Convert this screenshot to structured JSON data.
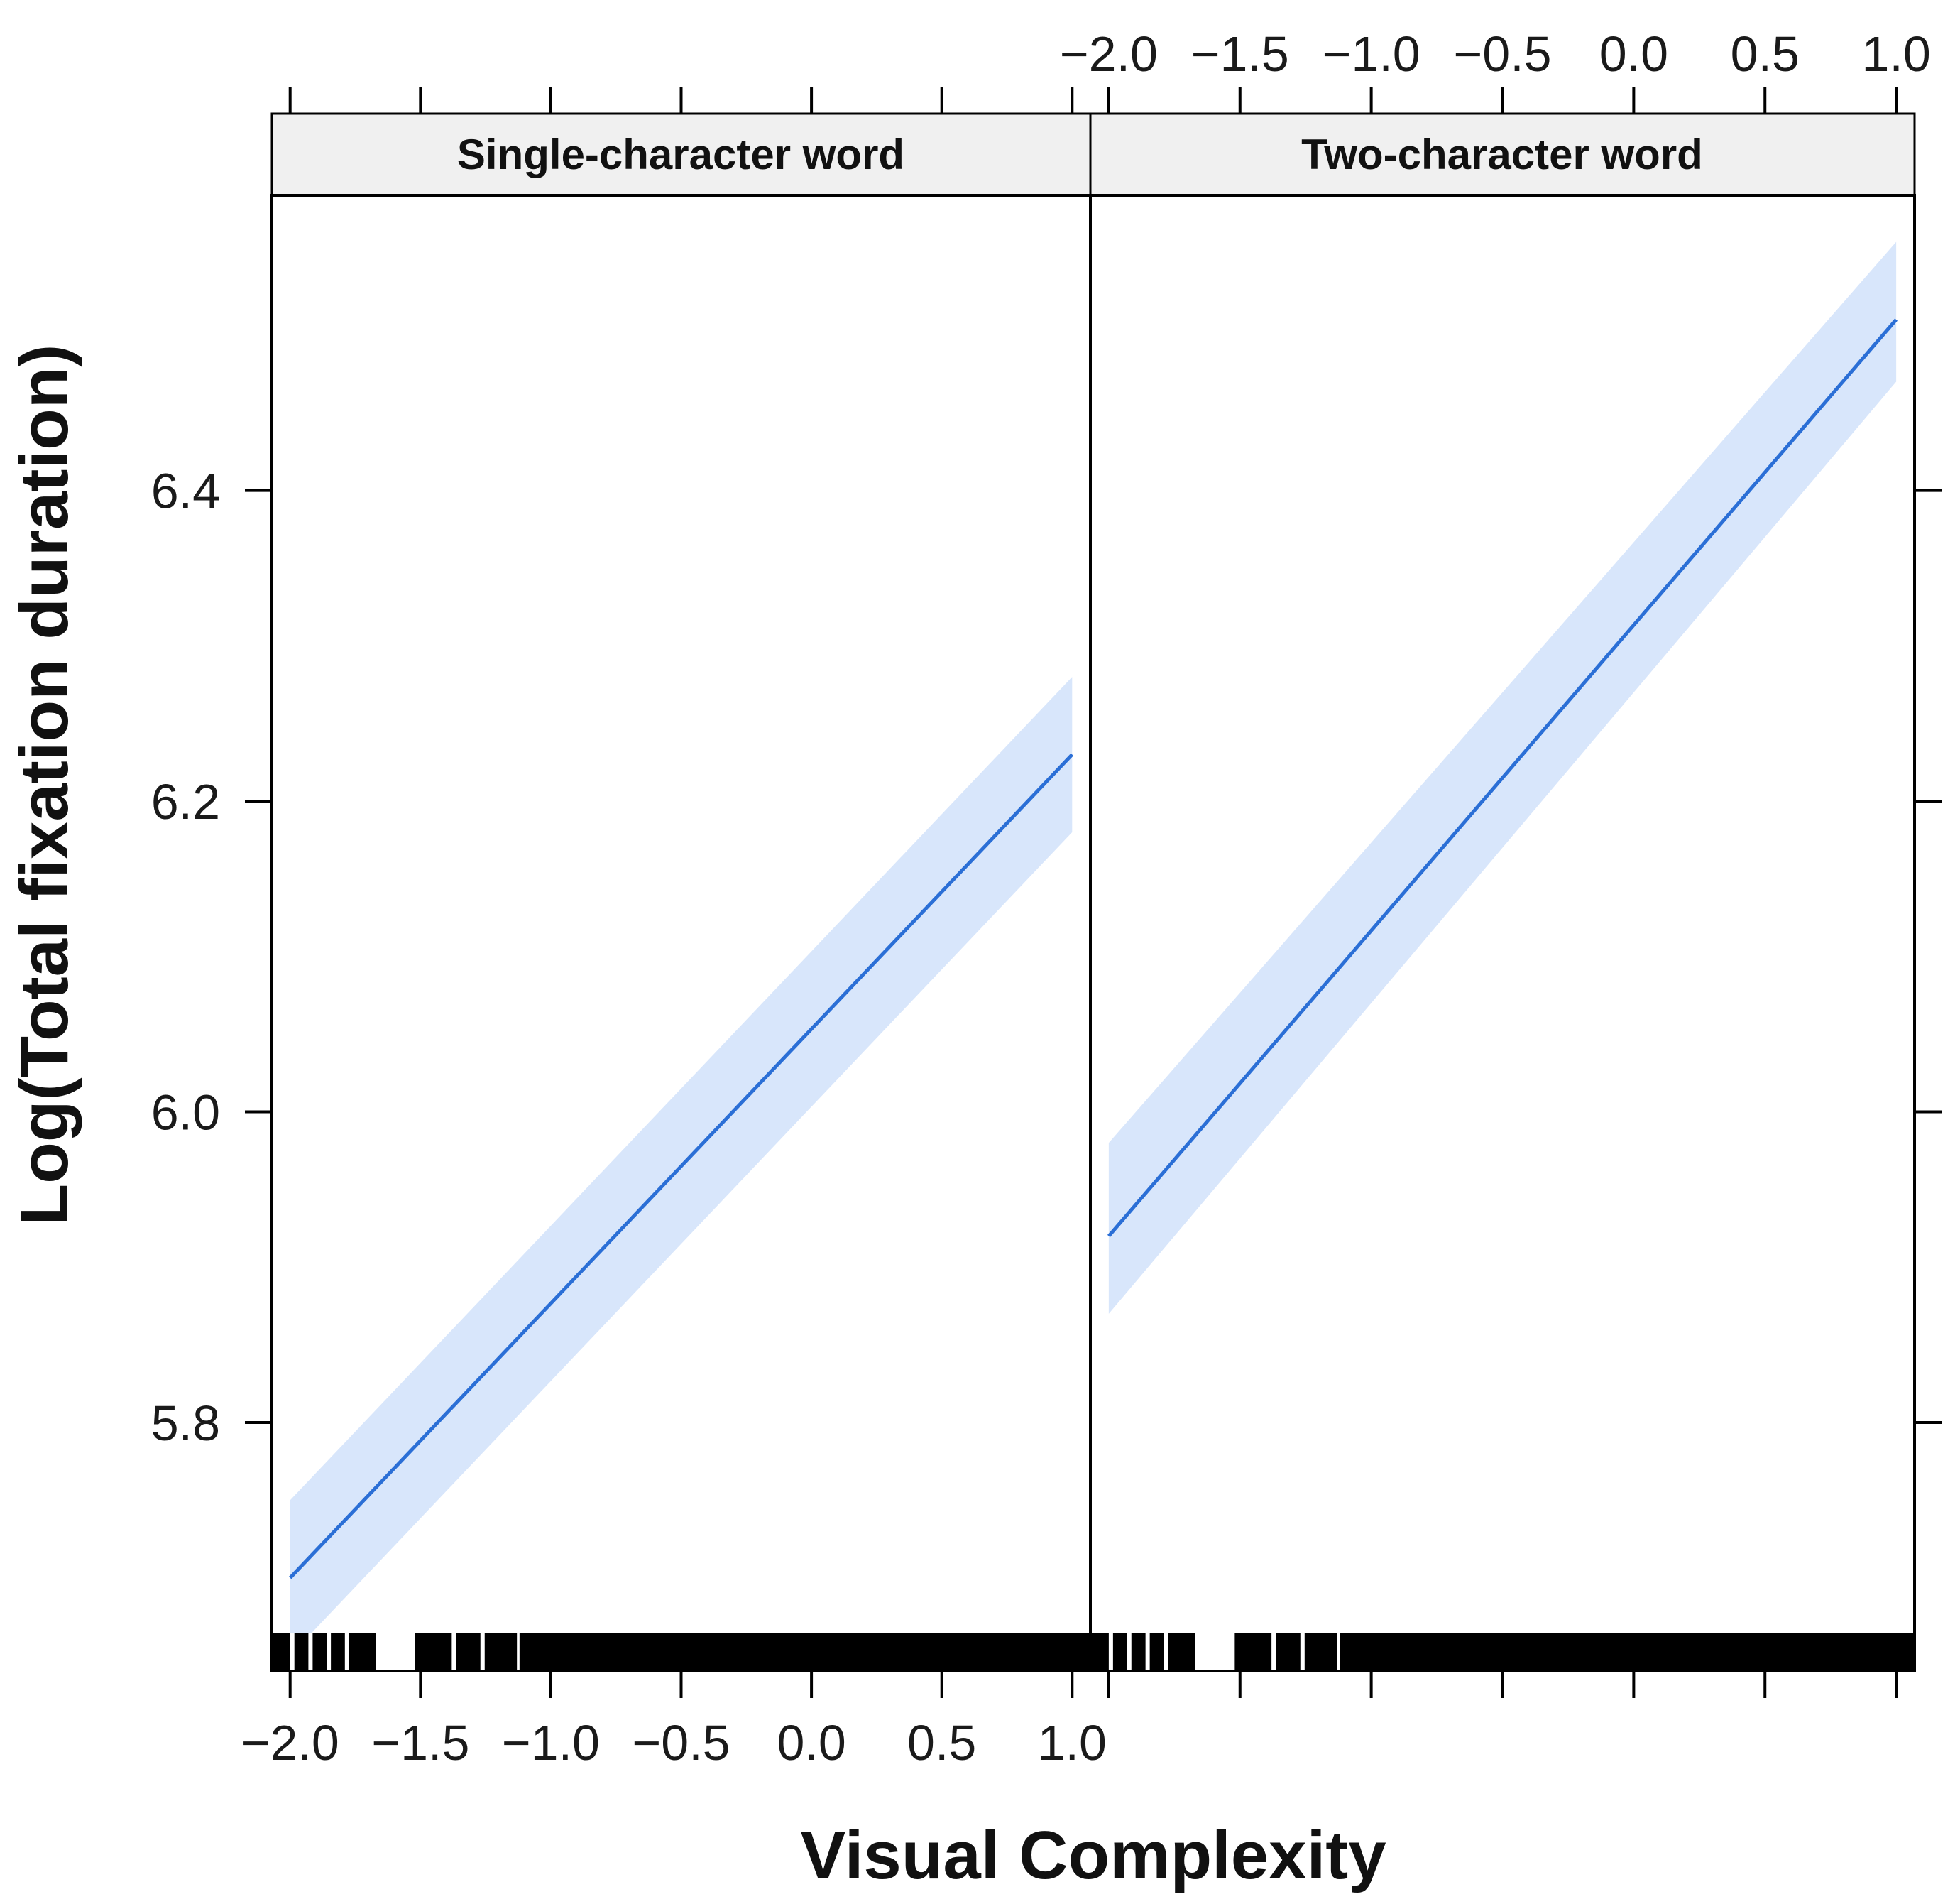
{
  "chart_data": {
    "type": "line",
    "xlabel": "Visual Complexity",
    "ylabel": "Log(Total fixation duration)",
    "xlim": [
      -2.07,
      1.07
    ],
    "ylim": [
      5.64,
      6.59
    ],
    "xticks": [
      -2.0,
      -1.5,
      -1.0,
      -0.5,
      0.0,
      0.5,
      1.0
    ],
    "xtick_labels": [
      "−2.0",
      "−1.5",
      "−1.0",
      "−0.5",
      "0.0",
      "0.5",
      "1.0"
    ],
    "yticks": [
      5.8,
      6.0,
      6.2,
      6.4
    ],
    "ytick_labels": [
      "5.8",
      "6.0",
      "6.2",
      "6.4"
    ],
    "grid": false,
    "colors": {
      "line": "#2b6fd6",
      "band": "#d8e6fb",
      "rug": "#000000",
      "strip": "#f0f0f0"
    },
    "panels": [
      {
        "strip_label": "Single-character word",
        "x": [
          -2.0,
          1.0
        ],
        "y": [
          5.7,
          6.23
        ],
        "ci_lower": [
          5.65,
          6.18
        ],
        "ci_upper": [
          5.75,
          6.28
        ],
        "rug_segments": [
          [
            -2.07,
            -1.67
          ],
          [
            -1.52,
            -1.13
          ],
          [
            -1.12,
            1.07
          ]
        ]
      },
      {
        "strip_label": "Two-character word",
        "x": [
          -2.0,
          1.0
        ],
        "y": [
          5.92,
          6.51
        ],
        "ci_lower": [
          5.87,
          6.47
        ],
        "ci_upper": [
          5.98,
          6.56
        ],
        "rug_segments": [
          [
            -2.07,
            -1.67
          ],
          [
            -1.52,
            -1.13
          ],
          [
            -1.12,
            1.07
          ]
        ]
      }
    ]
  }
}
